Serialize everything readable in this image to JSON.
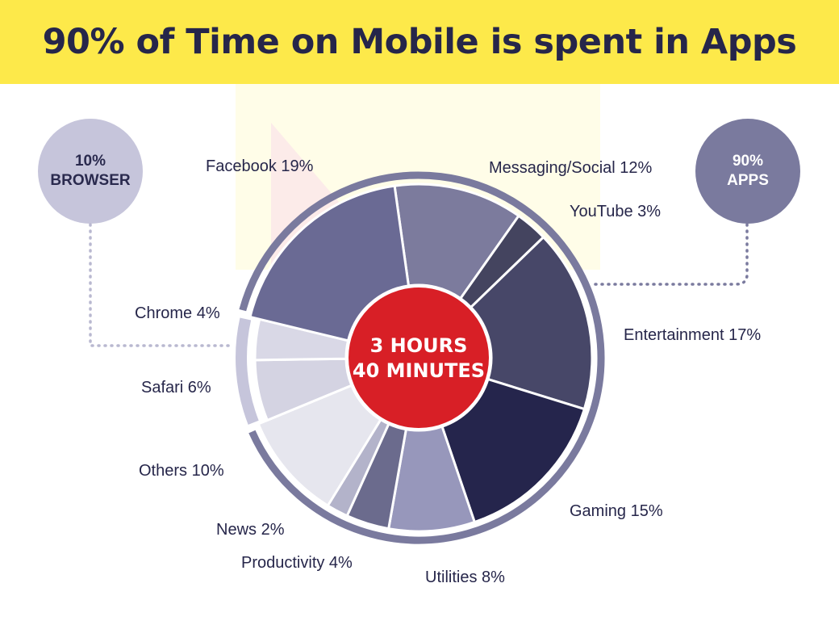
{
  "title": "90% of Time on Mobile is spent in Apps",
  "browser_bubble": {
    "percent": "10%",
    "label": "BROWSER"
  },
  "apps_bubble": {
    "percent": "90%",
    "label": "APPS"
  },
  "center": {
    "line1": "3 HOURS",
    "line2": "40 MINUTES"
  },
  "colors": {
    "banner": "#fde94a",
    "title": "#26264a",
    "center": "#d81f26",
    "outer_ring": "#7a7a9e",
    "browser_ring": "#c6c5db"
  },
  "chart_data": {
    "type": "pie",
    "title": "90% of Time on Mobile is spent in Apps",
    "total_time": "3 HOURS 40 MINUTES",
    "groups": [
      {
        "label": "BROWSER",
        "value": 10
      },
      {
        "label": "APPS",
        "value": 90
      }
    ],
    "slices": [
      {
        "label": "Messaging/Social 12%",
        "name": "Messaging/Social",
        "value": 12,
        "group": "APPS",
        "color": "#7c7b9d"
      },
      {
        "label": "YouTube 3%",
        "name": "YouTube",
        "value": 3,
        "group": "APPS",
        "color": "#44445f"
      },
      {
        "label": "Entertainment 17%",
        "name": "Entertainment",
        "value": 17,
        "group": "APPS",
        "color": "#474768"
      },
      {
        "label": "Gaming 15%",
        "name": "Gaming",
        "value": 15,
        "group": "APPS",
        "color": "#25254c"
      },
      {
        "label": "Utilities 8%",
        "name": "Utilities",
        "value": 8,
        "group": "APPS",
        "color": "#9797bb"
      },
      {
        "label": "Productivity 4%",
        "name": "Productivity",
        "value": 4,
        "group": "APPS",
        "color": "#6b6b8d"
      },
      {
        "label": "News 2%",
        "name": "News",
        "value": 2,
        "group": "APPS",
        "color": "#b3b3ca"
      },
      {
        "label": "Others 10%",
        "name": "Others",
        "value": 10,
        "group": "APPS",
        "color": "#e6e6ee"
      },
      {
        "label": "Safari 6%",
        "name": "Safari",
        "value": 6,
        "group": "BROWSER",
        "color": "#d4d3e2"
      },
      {
        "label": "Chrome 4%",
        "name": "Chrome",
        "value": 4,
        "group": "BROWSER",
        "color": "#d9d8e6"
      },
      {
        "label": "Facebook 19%",
        "name": "Facebook",
        "value": 19,
        "group": "APPS",
        "color": "#6a6a94"
      }
    ],
    "legend": "none"
  }
}
